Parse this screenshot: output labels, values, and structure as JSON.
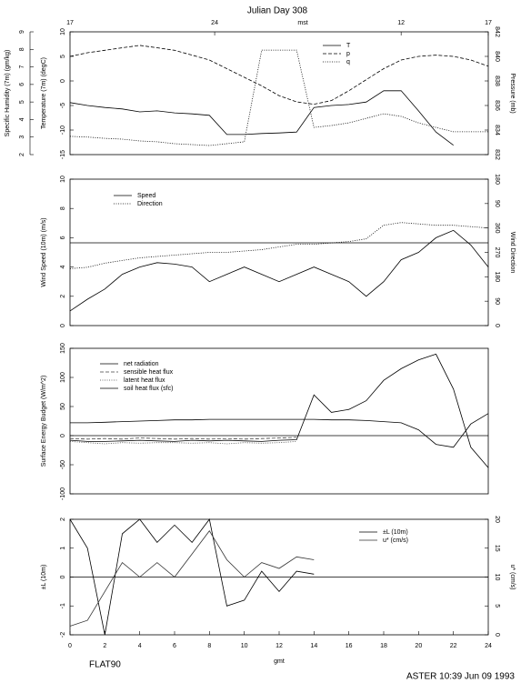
{
  "title": "Julian Day 308",
  "footer_left": "FLAT90",
  "footer_right": "ASTER 10:39 Jun 09 1993",
  "chart_data": [
    {
      "type": "line",
      "x2label": "mst",
      "x2ticks": [
        {
          "value": 0,
          "label": "17"
        },
        {
          "value": 8.3,
          "label": "24"
        },
        {
          "value": 19,
          "label": "12"
        },
        {
          "value": 24,
          "label": "17"
        }
      ],
      "ylabel": "Temperature (7m) (degC)",
      "y2label": "Pressure (mb)",
      "y3label": "Specific Humidity (7m) (gm/kg)",
      "xlim": [
        0,
        24
      ],
      "ylim": [
        -15,
        10
      ],
      "yticks": [
        -15,
        -10,
        -5,
        0,
        5,
        10
      ],
      "y2lim": [
        832,
        842
      ],
      "y2ticks": [
        832,
        834,
        836,
        838,
        840,
        842
      ],
      "y3lim": [
        2,
        9
      ],
      "y3ticks": [
        2,
        3,
        4,
        5,
        6,
        7,
        8,
        9
      ],
      "x": [
        0,
        1,
        2,
        3,
        4,
        5,
        6,
        7,
        8,
        9,
        10,
        11,
        12,
        13,
        14,
        15,
        16,
        17,
        18,
        19,
        20,
        21,
        22,
        23,
        24
      ],
      "series": [
        {
          "name": "T",
          "color": "#000000",
          "style": "solid",
          "values": [
            -4.4,
            -5.0,
            -5.4,
            -5.7,
            -6.3,
            -6.1,
            -6.5,
            -6.7,
            -7.0,
            -10.9,
            -10.9,
            -10.7,
            -10.6,
            -10.4,
            -5.4,
            -5.0,
            -4.8,
            -4.3,
            -2.0,
            -2.0,
            -6.1,
            -10.4,
            -13.1,
            null,
            null
          ]
        },
        {
          "name": "p",
          "color": "#000000",
          "style": "dashed",
          "axis": "y2",
          "values": [
            840.0,
            840.3,
            840.5,
            840.7,
            840.9,
            840.7,
            840.5,
            840.1,
            839.7,
            839.0,
            838.3,
            837.6,
            836.8,
            836.3,
            836.1,
            836.4,
            837.2,
            838.1,
            839.0,
            839.7,
            840.0,
            840.1,
            840.0,
            839.7,
            839.2
          ]
        },
        {
          "name": "q",
          "color": "#000000",
          "style": "dotted",
          "axis": "y3",
          "values": [
            3.04,
            3.0,
            2.93,
            2.88,
            2.78,
            2.73,
            2.62,
            2.57,
            2.52,
            2.62,
            2.73,
            7.96,
            7.96,
            7.96,
            3.55,
            3.66,
            3.81,
            4.07,
            4.33,
            4.18,
            3.81,
            3.55,
            3.3,
            3.3,
            3.3
          ]
        }
      ]
    },
    {
      "type": "line",
      "ylabel": "Wind Speed (10m) (m/s)",
      "y2label": "Wind Direction",
      "xlim": [
        0,
        24
      ],
      "ylim": [
        0,
        10
      ],
      "yticks": [
        0,
        2,
        4,
        6,
        8,
        10
      ],
      "y2lim": [
        0,
        540
      ],
      "y2ticks": [
        0,
        90,
        180,
        270,
        360,
        {
          "value": 450,
          "label": "90"
        },
        {
          "value": 540,
          "label": "180"
        }
      ],
      "hline": 5.65,
      "x": [
        0,
        1,
        2,
        3,
        4,
        5,
        6,
        7,
        8,
        9,
        10,
        11,
        12,
        13,
        14,
        15,
        16,
        17,
        18,
        19,
        20,
        21,
        22,
        23,
        24
      ],
      "series": [
        {
          "name": "Speed",
          "color": "#000000",
          "style": "solid",
          "values": [
            1.0,
            1.8,
            2.5,
            3.5,
            4.0,
            4.3,
            4.2,
            4.0,
            3.0,
            3.5,
            4.0,
            3.5,
            3.0,
            3.5,
            4.0,
            3.5,
            3.0,
            2.0,
            3.0,
            4.5,
            5.0,
            6.0,
            6.5,
            5.5,
            4.0
          ]
        },
        {
          "name": "Direction",
          "color": "#000000",
          "style": "dotted",
          "axis": "y2",
          "values": [
            210,
            215,
            230,
            240,
            250,
            255,
            260,
            265,
            270,
            270,
            275,
            280,
            290,
            300,
            300,
            305,
            310,
            320,
            370,
            380,
            375,
            370,
            370,
            365,
            360
          ]
        }
      ]
    },
    {
      "type": "line",
      "ylabel": "Surface Energy Budget (W/m^2)",
      "xlim": [
        0,
        24
      ],
      "ylim": [
        -100,
        150
      ],
      "yticks": [
        -100,
        -50,
        0,
        50,
        100,
        150
      ],
      "hline": 0,
      "x": [
        0,
        1,
        2,
        3,
        4,
        5,
        6,
        7,
        8,
        9,
        10,
        11,
        12,
        13,
        14,
        15,
        16,
        17,
        18,
        19,
        20,
        21,
        22,
        23,
        24
      ],
      "series": [
        {
          "name": "net radiation",
          "color": "#000000",
          "style": "solid",
          "values": [
            -8,
            -10,
            -10,
            -9,
            -8,
            -9,
            -10,
            -8,
            -9,
            -8,
            -9,
            -10,
            -8,
            -7,
            70,
            40,
            45,
            60,
            95,
            115,
            130,
            140,
            80,
            -20,
            -55
          ]
        },
        {
          "name": "sensible heat flux",
          "color": "#444444",
          "style": "dashed",
          "values": [
            -5,
            -6,
            -5,
            -6,
            -4,
            -5,
            -6,
            -5,
            -6,
            -5,
            -6,
            -5,
            -4,
            -3,
            null,
            null,
            null,
            null,
            null,
            null,
            null,
            null,
            null,
            null,
            null
          ]
        },
        {
          "name": "latent heat flux",
          "color": "#444444",
          "style": "dotted",
          "values": [
            -10,
            -12,
            -14,
            -12,
            -13,
            -12,
            -12,
            -13,
            -12,
            -14,
            -12,
            -13,
            -12,
            -10,
            null,
            null,
            null,
            null,
            null,
            null,
            null,
            null,
            null,
            null,
            null
          ]
        },
        {
          "name": "soil heat flux (sfc)",
          "color": "#000000",
          "style": "solid",
          "values": [
            22,
            22,
            23,
            24,
            25,
            26,
            27,
            27,
            28,
            28,
            28,
            28,
            28,
            28,
            28,
            27,
            27,
            26,
            24,
            22,
            10,
            -15,
            -20,
            20,
            38
          ]
        }
      ]
    },
    {
      "type": "line",
      "ylabel": "±L (10m)",
      "y2label": "u* (cm/s)",
      "xlabel": "gmt",
      "xlim": [
        0,
        24
      ],
      "xticks": [
        0,
        2,
        4,
        6,
        8,
        10,
        12,
        14,
        16,
        18,
        20,
        22,
        24
      ],
      "ylim": [
        -2,
        2
      ],
      "yticks": [
        -2,
        -1,
        0,
        1,
        2
      ],
      "y2lim": [
        0,
        20
      ],
      "y2ticks": [
        0,
        5,
        10,
        15,
        20
      ],
      "hline": 0,
      "x": [
        0,
        1,
        2,
        3,
        4,
        5,
        6,
        7,
        8,
        9,
        10,
        11,
        12,
        13,
        14,
        15,
        16,
        17,
        18,
        19,
        20,
        21,
        22,
        23,
        24
      ],
      "series": [
        {
          "name": "±L (10m)",
          "color": "#000000",
          "style": "solid",
          "values": [
            2,
            1,
            -2,
            1.5,
            2,
            1.2,
            1.8,
            1.2,
            2,
            -1,
            -0.8,
            0.2,
            -0.5,
            0.2,
            0.1,
            null,
            null,
            null,
            null,
            null,
            null,
            null,
            null,
            null,
            null
          ]
        },
        {
          "name": "u* (cm/s)",
          "color": "#333333",
          "style": "solid",
          "axis": "y2",
          "values": [
            1.5,
            2.5,
            7.5,
            12.5,
            10,
            12.5,
            10,
            14,
            18,
            13,
            10,
            12.5,
            11.5,
            13.5,
            13,
            null,
            null,
            null,
            null,
            null,
            null,
            null,
            null,
            null,
            null
          ]
        }
      ]
    }
  ]
}
